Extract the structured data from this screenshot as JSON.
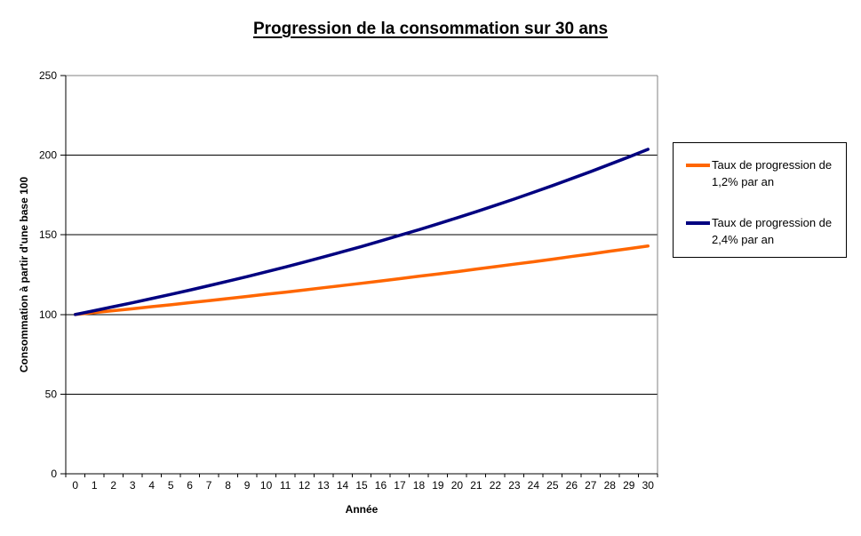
{
  "title": "Progression de la consommation sur 30 ans",
  "colors": {
    "background": "#FFFFFF",
    "axis": "#000000",
    "gridline": "#000000",
    "plot_border": "#808080",
    "legend_border": "#000000",
    "tick_text": "#000000"
  },
  "chart_data": {
    "type": "line",
    "title": "Progression de la consommation sur 30 ans",
    "xlabel": "Année",
    "ylabel": "Consommation à partir d'une base 100",
    "ylim": [
      0,
      250
    ],
    "y_ticks": [
      0,
      50,
      100,
      150,
      200,
      250
    ],
    "grid": "horizontal-major",
    "legend_position": "right",
    "x": [
      0,
      1,
      2,
      3,
      4,
      5,
      6,
      7,
      8,
      9,
      10,
      11,
      12,
      13,
      14,
      15,
      16,
      17,
      18,
      19,
      20,
      21,
      22,
      23,
      24,
      25,
      26,
      27,
      28,
      29,
      30
    ],
    "series": [
      {
        "name": "Taux de progression de 1,2% par an",
        "color": "#FF6600",
        "values": [
          100,
          101.2,
          102.4,
          103.6,
          104.9,
          106.1,
          107.4,
          108.7,
          110,
          111.3,
          112.7,
          114,
          115.4,
          116.8,
          118.2,
          119.6,
          121,
          122.5,
          124,
          125.4,
          126.9,
          128.5,
          130,
          131.6,
          133.1,
          134.7,
          136.4,
          138,
          139.7,
          141.3,
          143
        ]
      },
      {
        "name": "Taux de progression de 2,4% par an",
        "color": "#000080",
        "values": [
          100,
          102.4,
          104.9,
          107.4,
          110,
          112.6,
          115.3,
          118.1,
          120.9,
          123.8,
          126.8,
          129.8,
          132.9,
          136.1,
          139.4,
          142.7,
          146.2,
          149.7,
          153.2,
          156.9,
          160.7,
          164.5,
          168.5,
          172.5,
          176.7,
          180.9,
          185.3,
          189.7,
          194.3,
          198.9,
          203.7
        ]
      }
    ]
  }
}
